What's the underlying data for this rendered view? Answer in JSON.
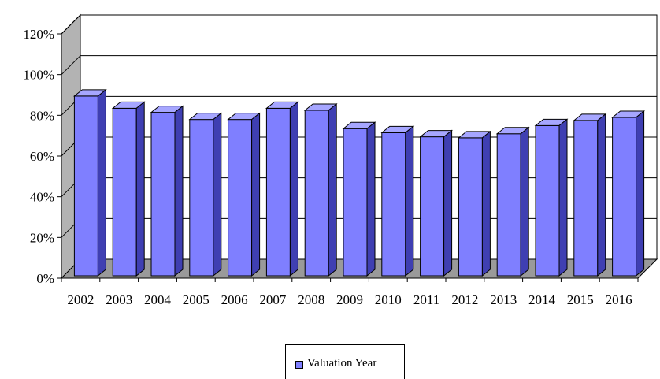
{
  "chart_data": {
    "type": "bar",
    "categories": [
      "2002",
      "2003",
      "2004",
      "2005",
      "2006",
      "2007",
      "2008",
      "2009",
      "2010",
      "2011",
      "2012",
      "2013",
      "2014",
      "2015",
      "2016"
    ],
    "series": [
      {
        "name": "Valuation Year",
        "values": [
          91,
          85,
          83,
          79.5,
          79.5,
          85,
          84,
          75,
          73,
          71,
          70.5,
          72.5,
          76.5,
          79,
          80.5
        ]
      }
    ],
    "ylim": [
      0,
      120
    ],
    "yticks": [
      "0%",
      "20%",
      "40%",
      "60%",
      "80%",
      "100%",
      "120%"
    ],
    "ytick_values": [
      0,
      20,
      40,
      60,
      80,
      100,
      120
    ],
    "y_unit": "%",
    "grid": true,
    "legend_position": "bottom",
    "three_d": true,
    "colors": {
      "bar_front": "#7f7fff",
      "bar_top": "#a6a6ff",
      "bar_side": "#3f3fb2",
      "wall": "#b3b3b3",
      "floor": "#9a9a9a"
    }
  },
  "legend": {
    "label": "Valuation Year"
  }
}
